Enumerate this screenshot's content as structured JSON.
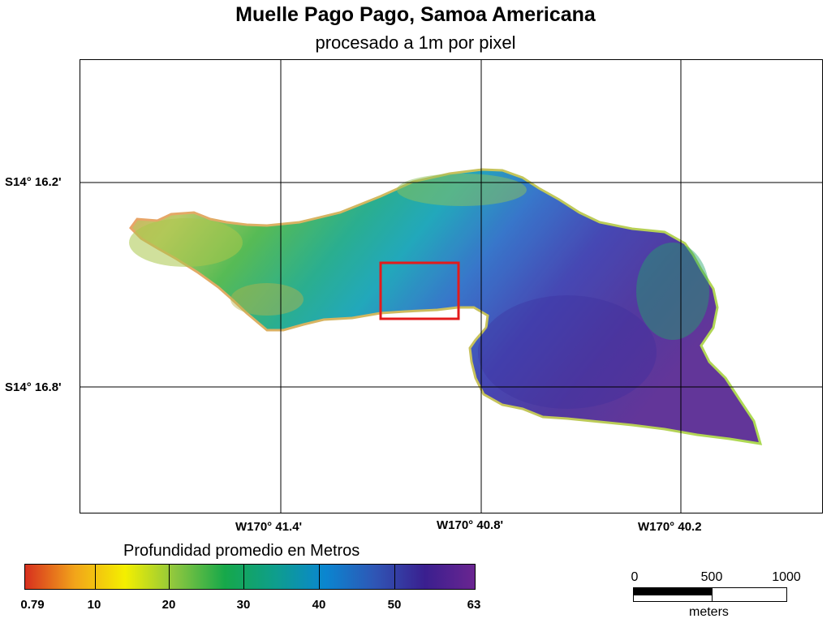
{
  "title": "Muelle Pago Pago, Samoa Americana",
  "subtitle": "procesado a 1m por pixel",
  "map": {
    "lat_labels": [
      "S14° 16.2'",
      "S14° 16.8'"
    ],
    "lon_labels": [
      "W170° 41.4'",
      "W170° 40.8'",
      "W170° 40.2"
    ],
    "highlight_color": "#e31b1b"
  },
  "legend": {
    "title": "Profundidad promedio en Metros",
    "tick_labels": [
      "0.79",
      "10",
      "20",
      "30",
      "40",
      "50",
      "63"
    ],
    "colors": [
      "#d7301f",
      "#f2a51a",
      "#f4ef00",
      "#8cc63f",
      "#16a84a",
      "#0e9e8c",
      "#0a86d0",
      "#2f56b5",
      "#3a1f8f",
      "#6a2590"
    ]
  },
  "scale_bar": {
    "labels": [
      "0",
      "500",
      "1000"
    ],
    "unit": "meters"
  }
}
